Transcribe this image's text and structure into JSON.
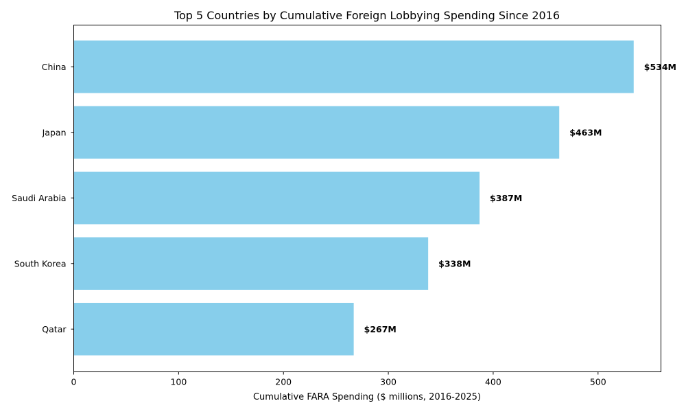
{
  "chart_data": {
    "type": "bar",
    "orientation": "horizontal",
    "title": "Top 5 Countries by Cumulative Foreign Lobbying Spending Since 2016",
    "xlabel": "Cumulative FARA Spending ($ millions, 2016-2025)",
    "ylabel": "",
    "categories": [
      "China",
      "Japan",
      "Saudi Arabia",
      "South Korea",
      "Qatar"
    ],
    "values": [
      534,
      463,
      387,
      338,
      267
    ],
    "data_labels": [
      "$534M",
      "$463M",
      "$387M",
      "$338M",
      "$267M"
    ],
    "xlim": [
      0,
      560
    ],
    "x_ticks": [
      0,
      100,
      200,
      300,
      400,
      500
    ],
    "x_tick_labels": [
      "0",
      "100",
      "200",
      "300",
      "400",
      "500"
    ],
    "grid": false,
    "legend": "none",
    "bar_color": "#87ceeb",
    "axis_color": "#000000"
  }
}
